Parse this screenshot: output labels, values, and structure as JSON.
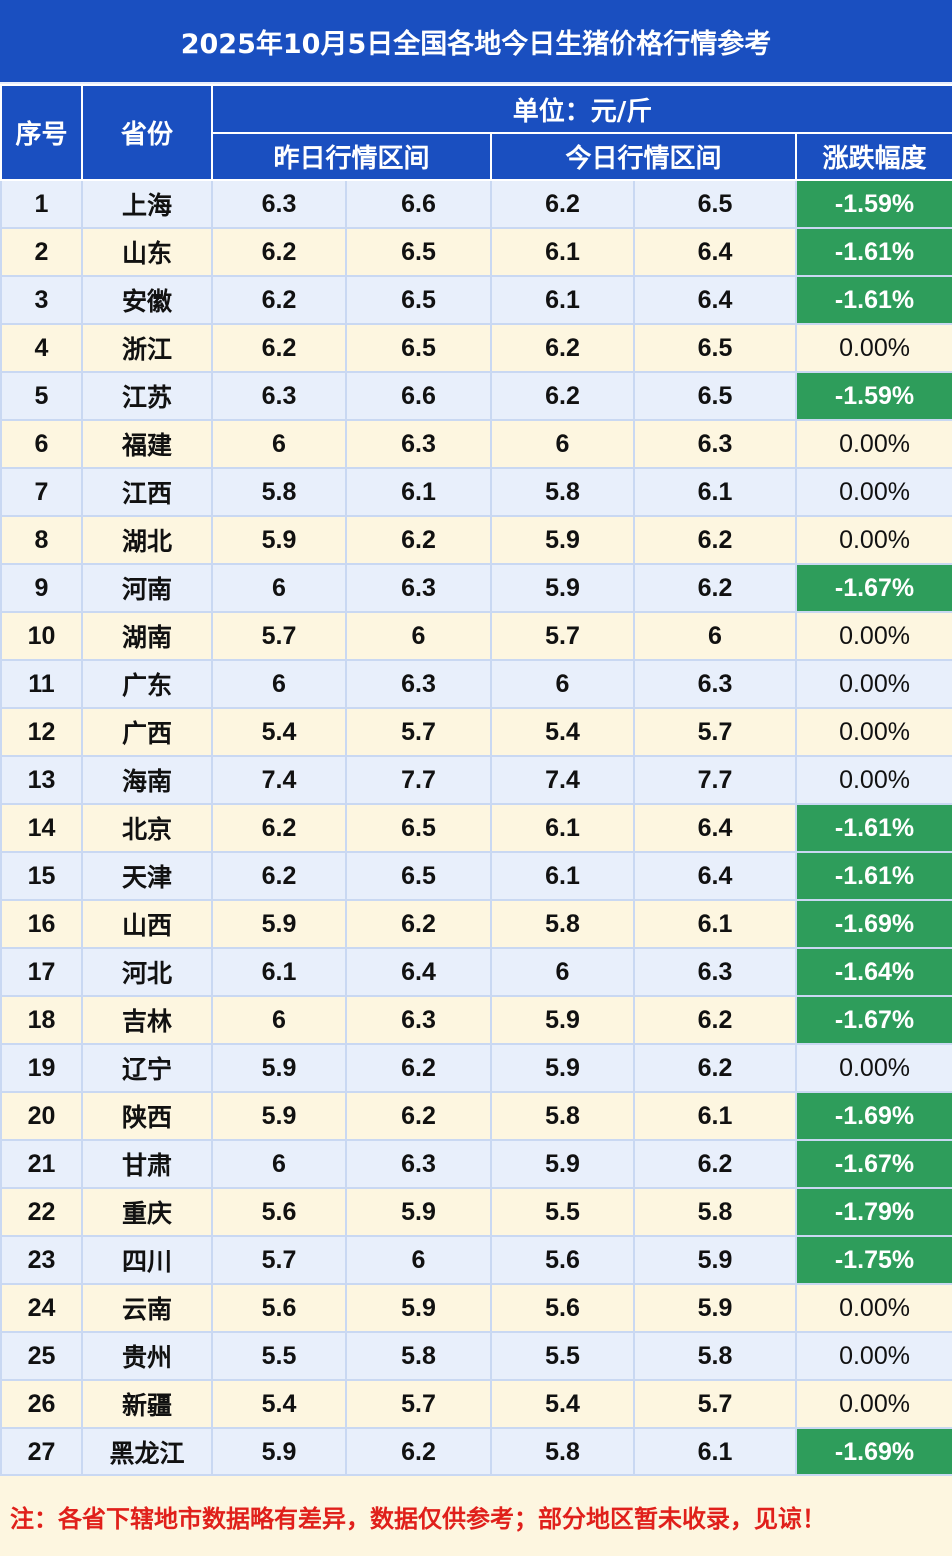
{
  "title": "2025年10月5日全国各地今日生猪价格行情参考",
  "header": {
    "index": "序号",
    "province": "省份",
    "unit": "单位：元/斤",
    "yesterday": "昨日行情区间",
    "today": "今日行情区间",
    "change": "涨跌幅度"
  },
  "colors": {
    "header_blue": "#1a4fc0",
    "row_blue": "#e8effb",
    "row_cream": "#fdf6e0",
    "down_green": "#2e9d5b",
    "note_red": "#e0201b"
  },
  "rows": [
    {
      "no": "1",
      "province": "上海",
      "y_low": "6.3",
      "y_high": "6.6",
      "t_low": "6.2",
      "t_high": "6.5",
      "change": "-1.59%"
    },
    {
      "no": "2",
      "province": "山东",
      "y_low": "6.2",
      "y_high": "6.5",
      "t_low": "6.1",
      "t_high": "6.4",
      "change": "-1.61%"
    },
    {
      "no": "3",
      "province": "安徽",
      "y_low": "6.2",
      "y_high": "6.5",
      "t_low": "6.1",
      "t_high": "6.4",
      "change": "-1.61%"
    },
    {
      "no": "4",
      "province": "浙江",
      "y_low": "6.2",
      "y_high": "6.5",
      "t_low": "6.2",
      "t_high": "6.5",
      "change": "0.00%"
    },
    {
      "no": "5",
      "province": "江苏",
      "y_low": "6.3",
      "y_high": "6.6",
      "t_low": "6.2",
      "t_high": "6.5",
      "change": "-1.59%"
    },
    {
      "no": "6",
      "province": "福建",
      "y_low": "6",
      "y_high": "6.3",
      "t_low": "6",
      "t_high": "6.3",
      "change": "0.00%"
    },
    {
      "no": "7",
      "province": "江西",
      "y_low": "5.8",
      "y_high": "6.1",
      "t_low": "5.8",
      "t_high": "6.1",
      "change": "0.00%"
    },
    {
      "no": "8",
      "province": "湖北",
      "y_low": "5.9",
      "y_high": "6.2",
      "t_low": "5.9",
      "t_high": "6.2",
      "change": "0.00%"
    },
    {
      "no": "9",
      "province": "河南",
      "y_low": "6",
      "y_high": "6.3",
      "t_low": "5.9",
      "t_high": "6.2",
      "change": "-1.67%"
    },
    {
      "no": "10",
      "province": "湖南",
      "y_low": "5.7",
      "y_high": "6",
      "t_low": "5.7",
      "t_high": "6",
      "change": "0.00%"
    },
    {
      "no": "11",
      "province": "广东",
      "y_low": "6",
      "y_high": "6.3",
      "t_low": "6",
      "t_high": "6.3",
      "change": "0.00%"
    },
    {
      "no": "12",
      "province": "广西",
      "y_low": "5.4",
      "y_high": "5.7",
      "t_low": "5.4",
      "t_high": "5.7",
      "change": "0.00%"
    },
    {
      "no": "13",
      "province": "海南",
      "y_low": "7.4",
      "y_high": "7.7",
      "t_low": "7.4",
      "t_high": "7.7",
      "change": "0.00%"
    },
    {
      "no": "14",
      "province": "北京",
      "y_low": "6.2",
      "y_high": "6.5",
      "t_low": "6.1",
      "t_high": "6.4",
      "change": "-1.61%"
    },
    {
      "no": "15",
      "province": "天津",
      "y_low": "6.2",
      "y_high": "6.5",
      "t_low": "6.1",
      "t_high": "6.4",
      "change": "-1.61%"
    },
    {
      "no": "16",
      "province": "山西",
      "y_low": "5.9",
      "y_high": "6.2",
      "t_low": "5.8",
      "t_high": "6.1",
      "change": "-1.69%"
    },
    {
      "no": "17",
      "province": "河北",
      "y_low": "6.1",
      "y_high": "6.4",
      "t_low": "6",
      "t_high": "6.3",
      "change": "-1.64%"
    },
    {
      "no": "18",
      "province": "吉林",
      "y_low": "6",
      "y_high": "6.3",
      "t_low": "5.9",
      "t_high": "6.2",
      "change": "-1.67%"
    },
    {
      "no": "19",
      "province": "辽宁",
      "y_low": "5.9",
      "y_high": "6.2",
      "t_low": "5.9",
      "t_high": "6.2",
      "change": "0.00%"
    },
    {
      "no": "20",
      "province": "陕西",
      "y_low": "5.9",
      "y_high": "6.2",
      "t_low": "5.8",
      "t_high": "6.1",
      "change": "-1.69%"
    },
    {
      "no": "21",
      "province": "甘肃",
      "y_low": "6",
      "y_high": "6.3",
      "t_low": "5.9",
      "t_high": "6.2",
      "change": "-1.67%"
    },
    {
      "no": "22",
      "province": "重庆",
      "y_low": "5.6",
      "y_high": "5.9",
      "t_low": "5.5",
      "t_high": "5.8",
      "change": "-1.79%"
    },
    {
      "no": "23",
      "province": "四川",
      "y_low": "5.7",
      "y_high": "6",
      "t_low": "5.6",
      "t_high": "5.9",
      "change": "-1.75%"
    },
    {
      "no": "24",
      "province": "云南",
      "y_low": "5.6",
      "y_high": "5.9",
      "t_low": "5.6",
      "t_high": "5.9",
      "change": "0.00%"
    },
    {
      "no": "25",
      "province": "贵州",
      "y_low": "5.5",
      "y_high": "5.8",
      "t_low": "5.5",
      "t_high": "5.8",
      "change": "0.00%"
    },
    {
      "no": "26",
      "province": "新疆",
      "y_low": "5.4",
      "y_high": "5.7",
      "t_low": "5.4",
      "t_high": "5.7",
      "change": "0.00%"
    },
    {
      "no": "27",
      "province": "黑龙江",
      "y_low": "5.9",
      "y_high": "6.2",
      "t_low": "5.8",
      "t_high": "6.1",
      "change": "-1.69%"
    }
  ],
  "footer_note": "注：各省下辖地市数据略有差异，数据仅供参考；部分地区暂未收录，见谅！"
}
